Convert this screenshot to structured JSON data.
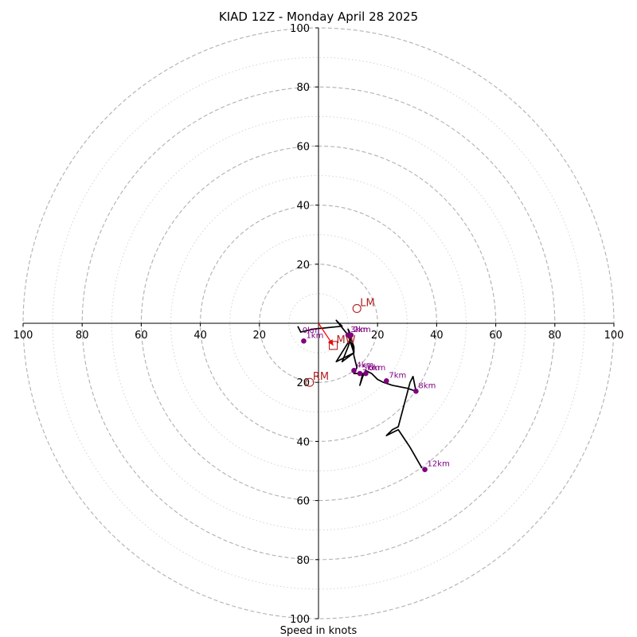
{
  "chart_data": {
    "type": "scatter",
    "subtype": "hodograph",
    "title": "KIAD 12Z - Monday April 28 2025",
    "xlabel": "Speed in knots",
    "xlim": [
      -100,
      100
    ],
    "ylim": [
      -100,
      100
    ],
    "ring_major": [
      20,
      40,
      60,
      80,
      100
    ],
    "ring_minor": [
      10,
      30,
      50,
      70,
      90
    ],
    "tick_labels_h": [
      "100",
      "80",
      "60",
      "40",
      "20",
      "20",
      "40",
      "60",
      "80",
      "100"
    ],
    "tick_values_h": [
      -100,
      -80,
      -60,
      -40,
      -20,
      20,
      40,
      60,
      80,
      100
    ],
    "tick_labels_v": [
      "100",
      "80",
      "60",
      "40",
      "20",
      "20",
      "40",
      "60",
      "80",
      "100"
    ],
    "tick_values_v": [
      100,
      80,
      60,
      40,
      20,
      -20,
      -40,
      -60,
      -80,
      -100
    ],
    "grid": true,
    "hodograph_trace": {
      "x": [
        -7,
        -6,
        -2,
        8,
        6,
        10,
        12,
        8,
        10,
        11,
        6,
        12,
        12,
        11,
        10,
        11,
        12,
        13,
        12,
        15,
        14,
        15,
        16,
        18,
        20,
        22,
        25,
        30,
        33,
        32,
        31,
        27,
        25,
        23,
        27,
        31,
        35
      ],
      "y": [
        -1,
        -3,
        -2,
        -1,
        1,
        -4,
        -10,
        -13,
        -8,
        -5,
        -13,
        -10,
        -8,
        -5,
        -2,
        -4,
        -11,
        -15,
        -17,
        -17,
        -21,
        -18,
        -16,
        -17,
        -19,
        -20,
        -21,
        -22,
        -23,
        -18,
        -20,
        -35,
        -36,
        -38,
        -36,
        -42,
        -49
      ]
    },
    "height_markers": [
      {
        "label": "1km",
        "x": -5,
        "y": -6
      },
      {
        "label": "2km",
        "x": 11,
        "y": -4
      },
      {
        "label": "3km",
        "x": 10,
        "y": -4
      },
      {
        "label": "4km",
        "x": 12,
        "y": -16
      },
      {
        "label": "5km",
        "x": 14,
        "y": -17
      },
      {
        "label": "6km",
        "x": 16,
        "y": -17
      },
      {
        "label": "7km",
        "x": 23,
        "y": -19.5
      },
      {
        "label": "8km",
        "x": 33,
        "y": -23
      },
      {
        "label": "12km",
        "x": 36,
        "y": -49.5
      }
    ],
    "surface_marker": {
      "label": "0km",
      "x": -6,
      "y": -3
    },
    "storm_motion_points": [
      {
        "label": "LM",
        "x": 13,
        "y": 5,
        "marker": "circle"
      },
      {
        "label": "MW",
        "x": 5,
        "y": -7.5,
        "marker": "square"
      },
      {
        "label": "RM",
        "x": -3,
        "y": -20,
        "marker": "circle"
      }
    ],
    "shear_vector": {
      "x1": 0,
      "y1": 0,
      "x2": 5,
      "y2": -7.5
    },
    "colors": {
      "trace": "#000000",
      "height_marker": "#800080",
      "storm_motion": "#b22222",
      "shear_vector": "#ff0000",
      "ring": "#b0b0b0"
    }
  }
}
